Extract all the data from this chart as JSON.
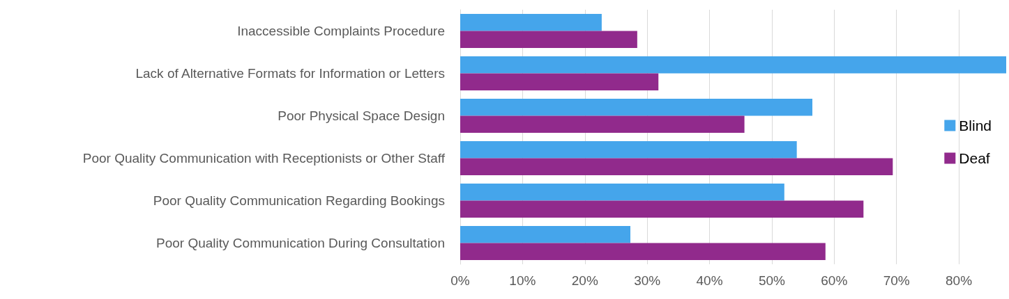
{
  "chart_data": {
    "type": "bar",
    "orientation": "horizontal",
    "categories": [
      "Inaccessible Complaints Procedure",
      "Lack of Alternative Formats for Information or Letters",
      "Poor Physical Space Design",
      "Poor Quality Communication with Receptionists or Other Staff",
      "Poor Quality Communication Regarding Bookings",
      "Poor Quality Communication During Consultation"
    ],
    "series": [
      {
        "name": "Blind",
        "color": "#45a5eb",
        "values": [
          22.7,
          87.6,
          56.5,
          54.0,
          52.0,
          27.3
        ]
      },
      {
        "name": "Deaf",
        "color": "#912a8c",
        "values": [
          28.4,
          31.8,
          45.6,
          69.4,
          64.7,
          58.6
        ]
      }
    ],
    "xlim": [
      0,
      87.6
    ],
    "xticks": [
      {
        "value": 0,
        "label": "0%"
      },
      {
        "value": 10,
        "label": "10%"
      },
      {
        "value": 20,
        "label": "20%"
      },
      {
        "value": 30,
        "label": "30%"
      },
      {
        "value": 40,
        "label": "40%"
      },
      {
        "value": 50,
        "label": "50%"
      },
      {
        "value": 60,
        "label": "60%"
      },
      {
        "value": 70,
        "label": "70%"
      },
      {
        "value": 80,
        "label": "80%"
      }
    ],
    "grid": "x",
    "legend": "right"
  }
}
